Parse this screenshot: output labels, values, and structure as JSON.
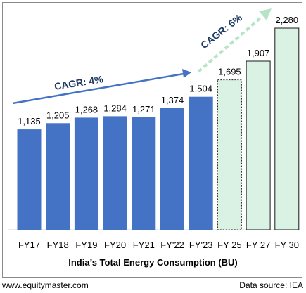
{
  "chart_data": {
    "type": "bar",
    "xlabel": "India’s Total Energy Consumption  (BU)",
    "ylabel": "",
    "categories": [
      "FY17",
      "FY18",
      "FY19",
      "FY20",
      "FY21",
      "FY'22",
      "FY'23",
      "FY 25",
      "FY 27",
      "FY 30"
    ],
    "series": [
      {
        "values": [
          1135,
          1205,
          1268,
          1284,
          1271,
          1374,
          1504,
          null,
          null,
          null
        ],
        "color": "#4472c4"
      },
      {
        "values": [
          null,
          null,
          null,
          null,
          null,
          null,
          null,
          1695,
          1907,
          2280
        ],
        "color": "#d9f2e4",
        "border": "#1a1a1a",
        "dashed_first": true
      }
    ],
    "data_labels": [
      "1,135",
      "1,205",
      "1,268",
      "1,284",
      "1,271",
      "1,374",
      "1,504",
      "1,695",
      "1,907",
      "2,280"
    ],
    "annotations": [
      {
        "text": "CAGR: 4%",
        "color": "#4472c4",
        "style": "solid-arrow"
      },
      {
        "text": "CAGR: 6%",
        "color": "#b7e4c7",
        "style": "dashed-arrow"
      }
    ],
    "grid": false,
    "legend": "none"
  },
  "footer": {
    "source_site": "www.equitymaster.com",
    "data_source": "Data source: IEA"
  }
}
